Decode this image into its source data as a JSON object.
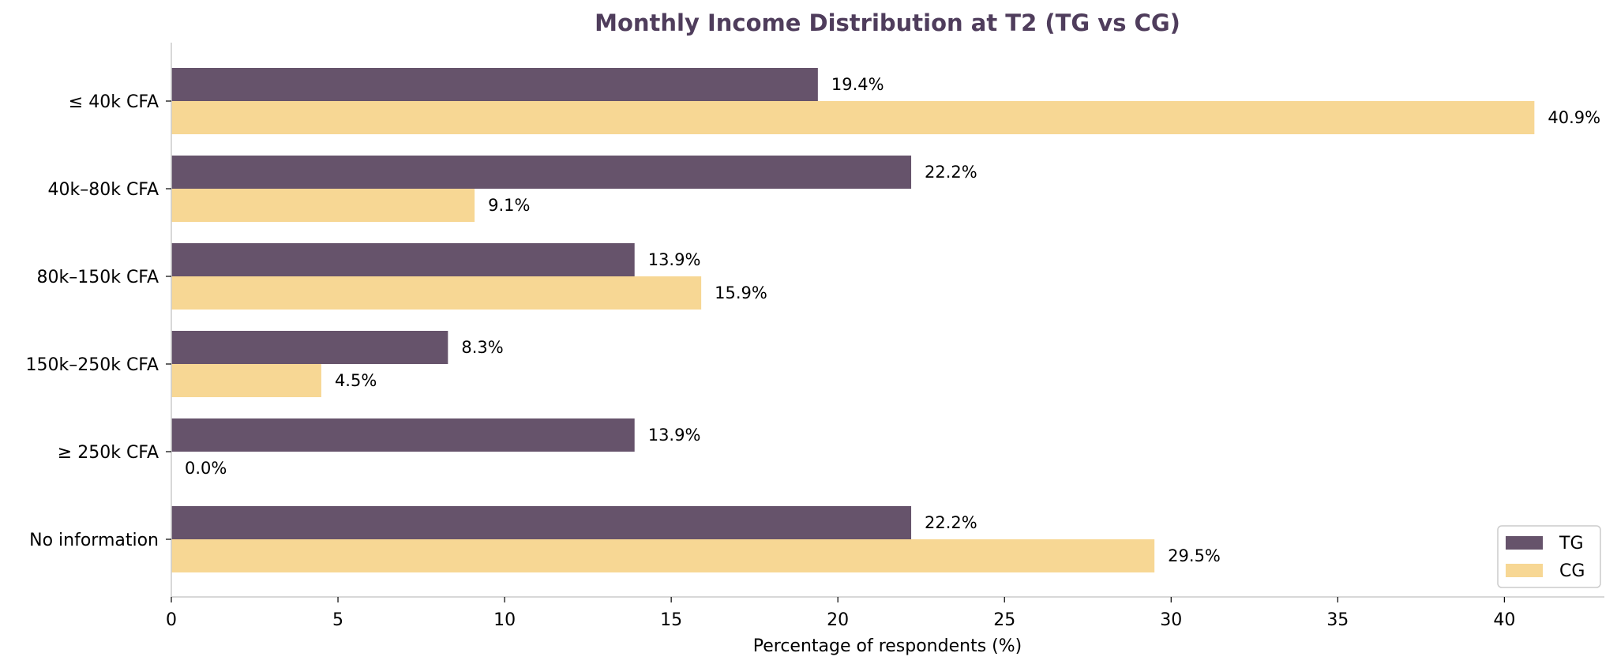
{
  "chart_data": {
    "type": "bar",
    "orientation": "horizontal",
    "title": "Monthly Income Distribution at T2 (TG vs CG)",
    "xlabel": "Percentage of respondents (%)",
    "ylabel": "",
    "xlim": [
      0,
      43
    ],
    "xticks": [
      0,
      5,
      10,
      15,
      20,
      25,
      30,
      35,
      40
    ],
    "xtick_labels": [
      "0",
      "5",
      "10",
      "15",
      "20",
      "25",
      "30",
      "35",
      "40"
    ],
    "categories": [
      "≤ 40k CFA",
      "40k–80k CFA",
      "80k–150k CFA",
      "150k–250k CFA",
      "≥ 250k CFA",
      "No information"
    ],
    "series": [
      {
        "name": "TG",
        "color": "#66536b",
        "values": [
          19.4,
          22.2,
          13.9,
          8.3,
          13.9,
          22.2
        ],
        "labels": [
          "19.4%",
          "22.2%",
          "13.9%",
          "8.3%",
          "13.9%",
          "22.2%"
        ]
      },
      {
        "name": "CG",
        "color": "#f7d794",
        "values": [
          40.9,
          9.1,
          15.9,
          4.5,
          0.0,
          29.5
        ],
        "labels": [
          "40.9%",
          "9.1%",
          "15.9%",
          "4.5%",
          "0.0%",
          "29.5%"
        ]
      }
    ],
    "grid": false,
    "legend_position": "bottom-right",
    "colors": {
      "title": "#4f3d5c",
      "axis": "#cccccc",
      "text": "#000000"
    }
  }
}
